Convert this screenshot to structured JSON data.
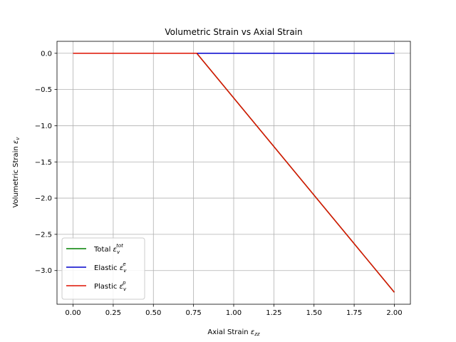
{
  "chart_data": {
    "type": "line",
    "title": "Volumetric Strain vs Axial Strain",
    "xlabel": {
      "main": "Axial Strain ",
      "symbol": "ε",
      "sub": "zz"
    },
    "ylabel": {
      "main": "Volumetric Strain ",
      "symbol": "ε",
      "sub": "v"
    },
    "xlim": [
      -0.1,
      2.1
    ],
    "ylim": [
      -3.465,
      0.165
    ],
    "xticks": [
      0.0,
      0.25,
      0.5,
      0.75,
      1.0,
      1.25,
      1.5,
      1.75,
      2.0
    ],
    "xtick_labels": [
      "0.00",
      "0.25",
      "0.50",
      "0.75",
      "1.00",
      "1.25",
      "1.50",
      "1.75",
      "2.00"
    ],
    "yticks": [
      0.0,
      -0.5,
      -1.0,
      -1.5,
      -2.0,
      -2.5,
      -3.0
    ],
    "ytick_labels": [
      "0.0",
      "−0.5",
      "−1.0",
      "−1.5",
      "−2.0",
      "−2.5",
      "−3.0"
    ],
    "grid": true,
    "legend_position": "lower-left",
    "series": [
      {
        "name": "Total",
        "symbol": "ε",
        "sub": "v",
        "sup": "tot",
        "color": "#008000",
        "x": [
          0.0,
          0.77,
          2.0
        ],
        "y": [
          0.0,
          0.0,
          -3.3
        ]
      },
      {
        "name": "Elastic",
        "symbol": "ε",
        "sub": "v",
        "sup": "e",
        "color": "#0000cc",
        "x": [
          0.0,
          0.77,
          2.0
        ],
        "y": [
          0.0,
          0.0,
          0.0
        ]
      },
      {
        "name": "Plastic",
        "symbol": "ε",
        "sub": "v",
        "sup": "p",
        "color": "#dd1100",
        "x": [
          0.0,
          0.77,
          2.0
        ],
        "y": [
          0.0,
          0.0,
          -3.3
        ]
      }
    ]
  }
}
